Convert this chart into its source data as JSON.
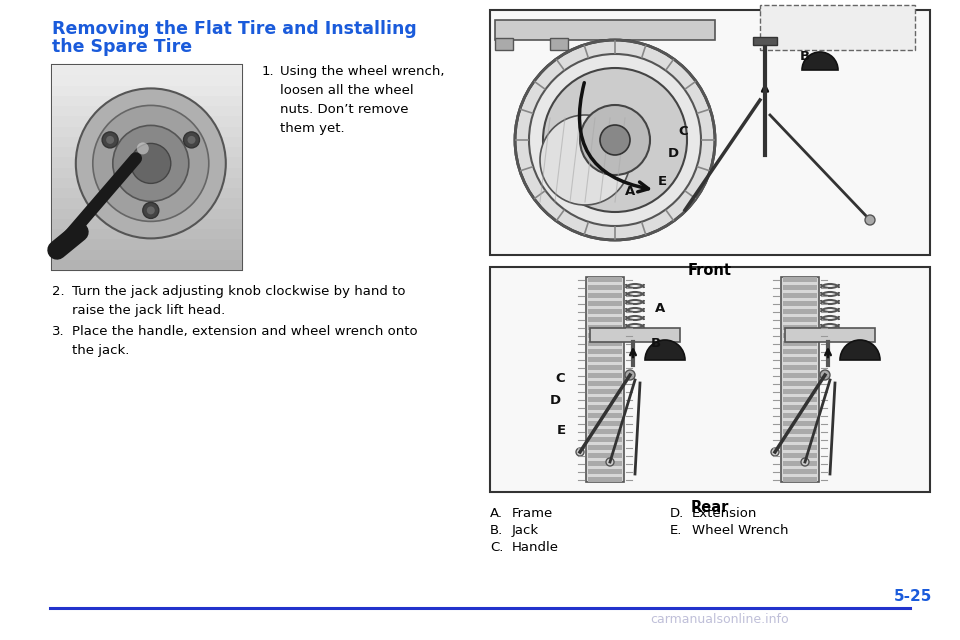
{
  "bg_color": "#ffffff",
  "title_line1": "Removing the Flat Tire and Installing",
  "title_line2": "the Spare Tire",
  "title_color": "#1a5bdb",
  "title_fontsize": 12.5,
  "body_color": "#000000",
  "body_fontsize": 9.5,
  "step1_num": "1.",
  "step1_text": "Using the wheel wrench,\nloosen all the wheel\nnuts. Don’t remove\nthem yet.",
  "step2_text": "Turn the jack adjusting knob clockwise by hand to\nraise the jack lift head.",
  "step3_text": "Place the handle, extension and wheel wrench onto\nthe jack.",
  "front_label": "Front",
  "rear_label": "Rear",
  "label_A_text": "Frame",
  "label_B_text": "Jack",
  "label_C_text": "Handle",
  "label_D_text": "Extension",
  "label_E_text": "Wheel Wrench",
  "page_num": "5-25",
  "page_num_color": "#1a5bdb",
  "watermark": "carmanualsonline.info",
  "watermark_color": "#aaaacc",
  "line_color": "#2233cc"
}
